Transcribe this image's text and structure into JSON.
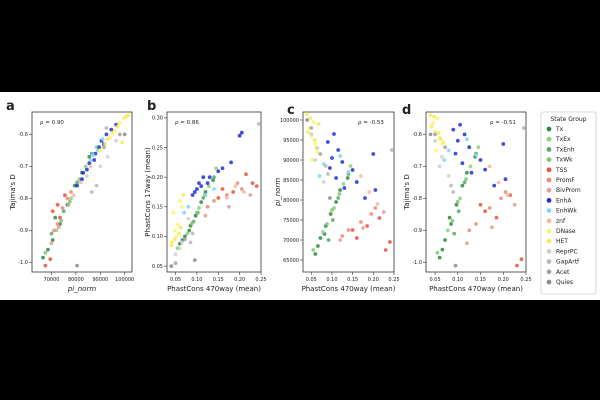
{
  "chart_data": {
    "panels": [
      {
        "label": "a",
        "type": "scatter",
        "xlabel": "pi_norm",
        "ylabel": "Tajima's D",
        "rho": "ρ = 0.90",
        "xlim": [
          62000,
          103000
        ],
        "ylim": [
          -1.03,
          -0.53
        ],
        "xticks": [
          70000,
          80000,
          90000,
          100000
        ],
        "xtick_labels": [
          "70000",
          "80000",
          "90000",
          "100000"
        ],
        "yticks": [
          -1.0,
          -0.9,
          -0.8,
          -0.7,
          -0.6
        ],
        "ytick_labels": [
          "-1.0",
          "-0.9",
          "-0.8",
          "-0.7",
          "-0.6"
        ]
      },
      {
        "label": "b",
        "type": "scatter",
        "xlabel": "PhastCons 470way  (mean)",
        "ylabel": "PhastCons 17way  (mean)",
        "rho": "ρ = 0.86",
        "xlim": [
          0.03,
          0.25
        ],
        "ylim": [
          0.04,
          0.31
        ],
        "xticks": [
          0.05,
          0.1,
          0.15,
          0.2,
          0.25
        ],
        "xtick_labels": [
          "0.05",
          "0.10",
          "0.15",
          "0.20",
          "0.25"
        ],
        "yticks": [
          0.05,
          0.1,
          0.15,
          0.2,
          0.25,
          0.3
        ],
        "ytick_labels": [
          "0.05",
          "0.10",
          "0.15",
          "0.20",
          "0.25",
          "0.30"
        ]
      },
      {
        "label": "c",
        "type": "scatter",
        "xlabel": "PhastCons 470way  (mean)",
        "ylabel": "pi_norm",
        "rho": "ρ = -0.53",
        "xlim": [
          0.03,
          0.25
        ],
        "ylim": [
          62000,
          102000
        ],
        "xticks": [
          0.05,
          0.1,
          0.15,
          0.2,
          0.25
        ],
        "xtick_labels": [
          "0.05",
          "0.10",
          "0.15",
          "0.20",
          "0.25"
        ],
        "yticks": [
          65000,
          70000,
          75000,
          80000,
          85000,
          90000,
          95000,
          100000
        ],
        "ytick_labels": [
          "65000",
          "70000",
          "75000",
          "80000",
          "85000",
          "90000",
          "95000",
          "100000"
        ]
      },
      {
        "label": "d",
        "type": "scatter",
        "xlabel": "PhastCons 470way  (mean)",
        "ylabel": "Tajima's D",
        "rho": "ρ = -0.51",
        "xlim": [
          0.03,
          0.25
        ],
        "ylim": [
          -1.03,
          -0.53
        ],
        "xticks": [
          0.05,
          0.1,
          0.15,
          0.2,
          0.25
        ],
        "xtick_labels": [
          "0.05",
          "0.10",
          "0.15",
          "0.20",
          "0.25"
        ],
        "yticks": [
          -1.0,
          -0.9,
          -0.8,
          -0.7,
          -0.6
        ],
        "ytick_labels": [
          "-1.0",
          "-0.9",
          "-0.8",
          "-0.7",
          "-0.6"
        ]
      }
    ],
    "legend": {
      "title": "State Group",
      "placement": "right",
      "entries": [
        {
          "name": "Tx",
          "color": "#2e8b3e"
        },
        {
          "name": "TxEx",
          "color": "#8fd07a"
        },
        {
          "name": "TxEnh",
          "color": "#5aa868"
        },
        {
          "name": "TxWk",
          "color": "#7bc96f"
        },
        {
          "name": "TSS",
          "color": "#e8553e"
        },
        {
          "name": "PromF",
          "color": "#f08a78"
        },
        {
          "name": "BivProm",
          "color": "#d9a09a"
        },
        {
          "name": "EnhA",
          "color": "#1f2fd6"
        },
        {
          "name": "EnhWk",
          "color": "#7fd8ef"
        },
        {
          "name": "znf",
          "color": "#f6b7a0"
        },
        {
          "name": "DNase",
          "color": "#fff36a"
        },
        {
          "name": "HET",
          "color": "#f7ea5a"
        },
        {
          "name": "ReprPC",
          "color": "#d0d0d0"
        },
        {
          "name": "GapArtf",
          "color": "#b8b8b8"
        },
        {
          "name": "Acet",
          "color": "#a2a2a2"
        },
        {
          "name": "Quies",
          "color": "#8c8c8c"
        }
      ]
    },
    "points": [
      {
        "g": "Tx",
        "pi": 70500,
        "td": -0.93,
        "p470": 0.072,
        "p17": 0.1
      },
      {
        "g": "Tx",
        "pi": 73500,
        "td": -0.88,
        "p470": 0.085,
        "p17": 0.118
      },
      {
        "g": "Tx",
        "pi": 76500,
        "td": -0.82,
        "p470": 0.097,
        "p17": 0.135
      },
      {
        "g": "Tx",
        "pi": 79500,
        "td": -0.76,
        "p470": 0.11,
        "p17": 0.158
      },
      {
        "g": "Tx",
        "pi": 66500,
        "td": -0.985,
        "p470": 0.06,
        "p17": 0.088
      },
      {
        "g": "Tx",
        "pi": 68500,
        "td": -0.96,
        "p470": 0.066,
        "p17": 0.094
      },
      {
        "g": "Tx",
        "pi": 82500,
        "td": -0.72,
        "p470": 0.12,
        "p17": 0.175
      },
      {
        "g": "Tx",
        "pi": 85500,
        "td": -0.67,
        "p470": 0.138,
        "p17": 0.195
      },
      {
        "g": "Tx",
        "pi": 71500,
        "td": -0.86,
        "p470": 0.082,
        "p17": 0.11
      },
      {
        "g": "TxEx",
        "pi": 72000,
        "td": -0.9,
        "p470": 0.078,
        "p17": 0.105
      },
      {
        "g": "TxEx",
        "pi": 78000,
        "td": -0.8,
        "p470": 0.105,
        "p17": 0.148
      },
      {
        "g": "TxEx",
        "pi": 84000,
        "td": -0.7,
        "p470": 0.128,
        "p17": 0.185
      },
      {
        "g": "TxEx",
        "pi": 88500,
        "td": -0.64,
        "p470": 0.145,
        "p17": 0.215
      },
      {
        "g": "TxEnh",
        "pi": 70000,
        "td": -0.91,
        "p470": 0.092,
        "p17": 0.125
      },
      {
        "g": "TxEnh",
        "pi": 75000,
        "td": -0.84,
        "p470": 0.102,
        "p17": 0.14
      },
      {
        "g": "TxEnh",
        "pi": 80500,
        "td": -0.75,
        "p470": 0.115,
        "p17": 0.165
      },
      {
        "g": "TxEnh",
        "pi": 86500,
        "td": -0.66,
        "p470": 0.14,
        "p17": 0.2
      },
      {
        "g": "TxWk",
        "pi": 67500,
        "td": -0.97,
        "p470": 0.055,
        "p17": 0.08
      },
      {
        "g": "TxWk",
        "pi": 74000,
        "td": -0.87,
        "p470": 0.088,
        "p17": 0.122
      },
      {
        "g": "TxWk",
        "pi": 77500,
        "td": -0.81,
        "p470": 0.1,
        "p17": 0.14
      },
      {
        "g": "TxWk",
        "pi": 81500,
        "td": -0.74,
        "p470": 0.118,
        "p17": 0.17
      },
      {
        "g": "TSS",
        "pi": 75500,
        "td": -0.79,
        "p470": 0.215,
        "p17": 0.205
      },
      {
        "g": "TSS",
        "pi": 69500,
        "td": -0.99,
        "p470": 0.24,
        "p17": 0.185
      },
      {
        "g": "TSS",
        "pi": 70500,
        "td": -0.84,
        "p470": 0.16,
        "p17": 0.18
      },
      {
        "g": "TSS",
        "pi": 67500,
        "td": -1.01,
        "p470": 0.23,
        "p17": 0.19
      },
      {
        "g": "TSS",
        "pi": 73500,
        "td": -0.86,
        "p470": 0.185,
        "p17": 0.175
      },
      {
        "g": "TSS",
        "pi": 72500,
        "td": -0.82,
        "p470": 0.15,
        "p17": 0.165
      },
      {
        "g": "PromF",
        "pi": 72500,
        "td": -0.88,
        "p470": 0.14,
        "p17": 0.16
      },
      {
        "g": "PromF",
        "pi": 74500,
        "td": -0.83,
        "p470": 0.17,
        "p17": 0.17
      },
      {
        "g": "PromF",
        "pi": 76500,
        "td": -0.8,
        "p470": 0.195,
        "p17": 0.19
      },
      {
        "g": "PromF",
        "pi": 78000,
        "td": -0.78,
        "p470": 0.205,
        "p17": 0.18
      },
      {
        "g": "PromF",
        "pi": 71000,
        "td": -0.9,
        "p470": 0.125,
        "p17": 0.15
      },
      {
        "g": "BivProm",
        "pi": 70000,
        "td": -0.94,
        "p470": 0.12,
        "p17": 0.135
      },
      {
        "g": "BivProm",
        "pi": 73000,
        "td": -0.89,
        "p470": 0.175,
        "p17": 0.15
      },
      {
        "g": "BivProm",
        "pi": 77000,
        "td": -0.82,
        "p470": 0.225,
        "p17": 0.17
      },
      {
        "g": "EnhA",
        "pi": 83000,
        "td": -0.72,
        "p470": 0.13,
        "p17": 0.2
      },
      {
        "g": "EnhA",
        "pi": 85500,
        "td": -0.69,
        "p470": 0.11,
        "p17": 0.185
      },
      {
        "g": "EnhA",
        "pi": 88000,
        "td": -0.66,
        "p470": 0.095,
        "p17": 0.175
      },
      {
        "g": "EnhA",
        "pi": 90500,
        "td": -0.62,
        "p470": 0.1,
        "p17": 0.18
      },
      {
        "g": "EnhA",
        "pi": 92500,
        "td": -0.6,
        "p470": 0.115,
        "p17": 0.2
      },
      {
        "g": "EnhA",
        "pi": 94500,
        "td": -0.585,
        "p470": 0.09,
        "p17": 0.17
      },
      {
        "g": "EnhA",
        "pi": 96500,
        "td": -0.57,
        "p470": 0.105,
        "p17": 0.19
      },
      {
        "g": "EnhA",
        "pi": 91500,
        "td": -0.63,
        "p470": 0.2,
        "p17": 0.27
      },
      {
        "g": "EnhA",
        "pi": 82500,
        "td": -0.74,
        "p470": 0.205,
        "p17": 0.275
      },
      {
        "g": "EnhA",
        "pi": 80500,
        "td": -0.76,
        "p470": 0.18,
        "p17": 0.225
      },
      {
        "g": "EnhA",
        "pi": 87500,
        "td": -0.68,
        "p470": 0.15,
        "p17": 0.21
      },
      {
        "g": "EnhA",
        "pi": 89500,
        "td": -0.64,
        "p470": 0.125,
        "p17": 0.19
      },
      {
        "g": "EnhA",
        "pi": 84500,
        "td": -0.71,
        "p470": 0.16,
        "p17": 0.215
      },
      {
        "g": "EnhWk",
        "pi": 86000,
        "td": -0.68,
        "p470": 0.07,
        "p17": 0.14
      },
      {
        "g": "EnhWk",
        "pi": 89000,
        "td": -0.65,
        "p470": 0.08,
        "p17": 0.15
      },
      {
        "g": "EnhWk",
        "pi": 87000,
        "td": -0.665,
        "p470": 0.14,
        "p17": 0.18
      },
      {
        "g": "EnhWk",
        "pi": 91000,
        "td": -0.615,
        "p470": 0.12,
        "p17": 0.17
      },
      {
        "g": "znf",
        "pi": 86000,
        "td": -0.7,
        "p470": 0.17,
        "p17": 0.165
      },
      {
        "g": "znf",
        "pi": 82000,
        "td": -0.75,
        "p470": 0.19,
        "p17": 0.185
      },
      {
        "g": "znf",
        "pi": 79000,
        "td": -0.79,
        "p470": 0.21,
        "p17": 0.175
      },
      {
        "g": "DNase",
        "pi": 96000,
        "td": -0.59,
        "p470": 0.05,
        "p17": 0.11
      },
      {
        "g": "DNase",
        "pi": 98000,
        "td": -0.565,
        "p470": 0.045,
        "p17": 0.14
      },
      {
        "g": "DNase",
        "pi": 99500,
        "td": -0.55,
        "p470": 0.055,
        "p17": 0.12
      },
      {
        "g": "DNase",
        "pi": 94000,
        "td": -0.61,
        "p470": 0.06,
        "p17": 0.16
      },
      {
        "g": "DNase",
        "pi": 92000,
        "td": -0.63,
        "p470": 0.065,
        "p17": 0.15
      },
      {
        "g": "DNase",
        "pi": 90000,
        "td": -0.65,
        "p470": 0.052,
        "p17": 0.1
      },
      {
        "g": "HET",
        "pi": 97000,
        "td": -0.575,
        "p470": 0.042,
        "p17": 0.09
      },
      {
        "g": "HET",
        "pi": 100500,
        "td": -0.545,
        "p470": 0.048,
        "p17": 0.095
      },
      {
        "g": "HET",
        "pi": 95000,
        "td": -0.595,
        "p470": 0.058,
        "p17": 0.105
      },
      {
        "g": "HET",
        "pi": 93000,
        "td": -0.615,
        "p470": 0.062,
        "p17": 0.115
      },
      {
        "g": "HET",
        "pi": 101500,
        "td": -0.54,
        "p470": 0.04,
        "p17": 0.085
      },
      {
        "g": "HET",
        "pi": 99000,
        "td": -0.625,
        "p470": 0.068,
        "p17": 0.17
      },
      {
        "g": "ReprPC",
        "pi": 84500,
        "td": -0.73,
        "p470": 0.08,
        "p17": 0.13
      },
      {
        "g": "ReprPC",
        "pi": 90000,
        "td": -0.7,
        "p470": 0.06,
        "p17": 0.08
      },
      {
        "g": "ReprPC",
        "pi": 93000,
        "td": -0.67,
        "p470": 0.065,
        "p17": 0.09
      },
      {
        "g": "ReprPC",
        "pi": 96500,
        "td": -0.62,
        "p470": 0.05,
        "p17": 0.07
      },
      {
        "g": "GapArtf",
        "pi": 86500,
        "td": -0.78,
        "p470": 0.09,
        "p17": 0.105
      },
      {
        "g": "GapArtf",
        "pi": 88500,
        "td": -0.76,
        "p470": 0.085,
        "p17": 0.09
      },
      {
        "g": "GapArtf",
        "pi": 92500,
        "td": -0.58,
        "p470": 0.245,
        "p17": 0.29
      },
      {
        "g": "Acet",
        "pi": 98000,
        "td": -0.6,
        "p470": 0.05,
        "p17": 0.055
      },
      {
        "g": "Acet",
        "pi": 91500,
        "td": -0.64,
        "p470": 0.072,
        "p17": 0.095
      },
      {
        "g": "Quies",
        "pi": 80500,
        "td": -1.01,
        "p470": 0.095,
        "p17": 0.06
      },
      {
        "g": "Quies",
        "pi": 100000,
        "td": -0.6,
        "p470": 0.04,
        "p17": 0.05
      }
    ]
  }
}
